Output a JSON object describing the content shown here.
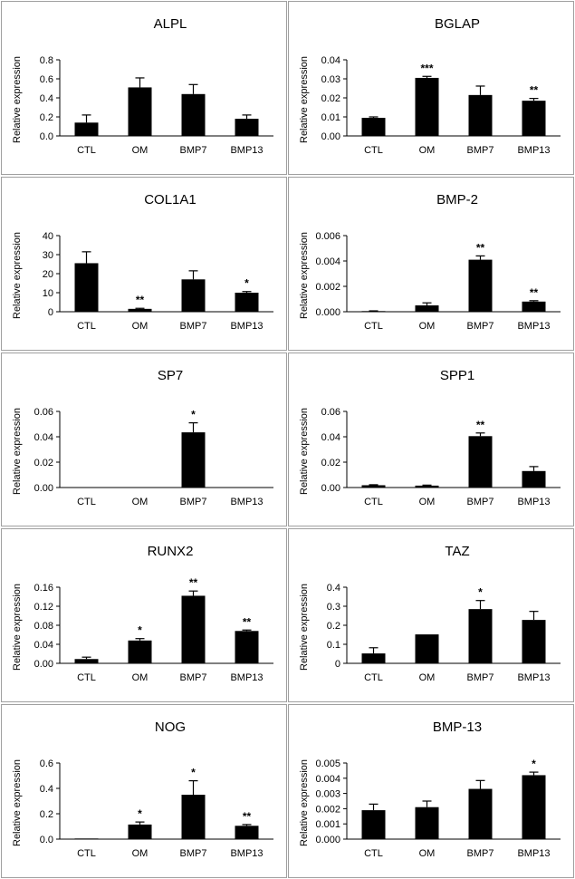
{
  "chart_data": [
    {
      "type": "bar",
      "title": "ALPL",
      "ylabel": "Relative expression",
      "categories": [
        "CTL",
        "OM",
        "BMP7",
        "BMP13"
      ],
      "values": [
        0.14,
        0.51,
        0.44,
        0.18
      ],
      "errors": [
        0.08,
        0.1,
        0.1,
        0.04
      ],
      "significance": [
        "",
        "",
        "",
        ""
      ],
      "ylim": [
        0,
        0.8
      ],
      "yticks": [
        "0.0",
        "0.2",
        "0.4",
        "0.6",
        "0.8"
      ]
    },
    {
      "type": "bar",
      "title": "BGLAP",
      "ylabel": "Relative expression",
      "categories": [
        "CTL",
        "OM",
        "BMP7",
        "BMP13"
      ],
      "values": [
        0.0095,
        0.0305,
        0.0215,
        0.0185
      ],
      "errors": [
        0.0005,
        0.0008,
        0.0047,
        0.0012
      ],
      "significance": [
        "",
        "***",
        "",
        "**"
      ],
      "ylim": [
        0,
        0.04
      ],
      "yticks": [
        "0.00",
        "0.01",
        "0.02",
        "0.03",
        "0.04"
      ]
    },
    {
      "type": "bar",
      "title": "COL1A1",
      "ylabel": "Relative expression",
      "categories": [
        "CTL",
        "OM",
        "BMP7",
        "BMP13"
      ],
      "values": [
        25.5,
        1.5,
        17,
        10
      ],
      "errors": [
        6,
        0.3,
        4.5,
        0.6
      ],
      "significance": [
        "",
        "**",
        "",
        "*"
      ],
      "ylim": [
        0,
        40
      ],
      "yticks": [
        "0",
        "10",
        "20",
        "30",
        "40"
      ]
    },
    {
      "type": "bar",
      "title": "BMP-2",
      "ylabel": "Relative expression",
      "categories": [
        "CTL",
        "OM",
        "BMP7",
        "BMP13"
      ],
      "values": [
        5e-05,
        0.0005,
        0.0041,
        0.0008
      ],
      "errors": [
        2e-05,
        0.0002,
        0.0003,
        7e-05
      ],
      "significance": [
        "",
        "",
        "**",
        "**"
      ],
      "ylim": [
        0,
        0.006
      ],
      "yticks": [
        "0.000",
        "0.002",
        "0.004",
        "0.006"
      ]
    },
    {
      "type": "bar",
      "title": "SP7",
      "ylabel": "Relative expression",
      "categories": [
        "CTL",
        "OM",
        "BMP7",
        "BMP13"
      ],
      "values": [
        0.0003,
        0.0003,
        0.0435,
        0.0003
      ],
      "errors": [
        0,
        0,
        0.0075,
        0
      ],
      "significance": [
        "",
        "",
        "*",
        ""
      ],
      "ylim": [
        0,
        0.06
      ],
      "yticks": [
        "0.00",
        "0.02",
        "0.04",
        "0.06"
      ]
    },
    {
      "type": "bar",
      "title": "SPP1",
      "ylabel": "Relative expression",
      "categories": [
        "CTL",
        "OM",
        "BMP7",
        "BMP13"
      ],
      "values": [
        0.0018,
        0.0015,
        0.0405,
        0.013
      ],
      "errors": [
        0.0004,
        0.0004,
        0.0025,
        0.0035
      ],
      "significance": [
        "",
        "",
        "**",
        ""
      ],
      "ylim": [
        0,
        0.06
      ],
      "yticks": [
        "0.00",
        "0.02",
        "0.04",
        "0.06"
      ]
    },
    {
      "type": "bar",
      "title": "RUNX2",
      "ylabel": "Relative expression",
      "categories": [
        "CTL",
        "OM",
        "BMP7",
        "BMP13"
      ],
      "values": [
        0.009,
        0.048,
        0.142,
        0.068
      ],
      "errors": [
        0.004,
        0.004,
        0.01,
        0.002
      ],
      "significance": [
        "",
        "*",
        "**",
        "**"
      ],
      "ylim": [
        0,
        0.16
      ],
      "yticks": [
        "0.00",
        "0.04",
        "0.08",
        "0.12",
        "0.16"
      ]
    },
    {
      "type": "bar",
      "title": "TAZ",
      "ylabel": "Relative expression",
      "categories": [
        "CTL",
        "OM",
        "BMP7",
        "BMP13"
      ],
      "values": [
        0.052,
        0.152,
        0.285,
        0.228
      ],
      "errors": [
        0.03,
        0,
        0.045,
        0.045
      ],
      "significance": [
        "",
        "",
        "*",
        ""
      ],
      "ylim": [
        0,
        0.4
      ],
      "yticks": [
        "0",
        "0.1",
        "0.2",
        "0.3",
        "0.4"
      ]
    },
    {
      "type": "bar",
      "title": "NOG",
      "ylabel": "Relative expression",
      "categories": [
        "CTL",
        "OM",
        "BMP7",
        "BMP13"
      ],
      "values": [
        0.005,
        0.115,
        0.35,
        0.105
      ],
      "errors": [
        0,
        0.02,
        0.11,
        0.01
      ],
      "significance": [
        "",
        "*",
        "*",
        "**"
      ],
      "ylim": [
        0,
        0.6
      ],
      "yticks": [
        "0.0",
        "0.2",
        "0.4",
        "0.6"
      ]
    },
    {
      "type": "bar",
      "title": "BMP-13",
      "ylabel": "Relative expression",
      "categories": [
        "CTL",
        "OM",
        "BMP7",
        "BMP13"
      ],
      "values": [
        0.0019,
        0.0021,
        0.0033,
        0.0042
      ],
      "errors": [
        0.0004,
        0.0004,
        0.00055,
        0.0002
      ],
      "significance": [
        "",
        "",
        "",
        "*"
      ],
      "ylim": [
        0,
        0.005
      ],
      "yticks": [
        "0.000",
        "0.001",
        "0.002",
        "0.003",
        "0.004",
        "0.005"
      ]
    }
  ]
}
